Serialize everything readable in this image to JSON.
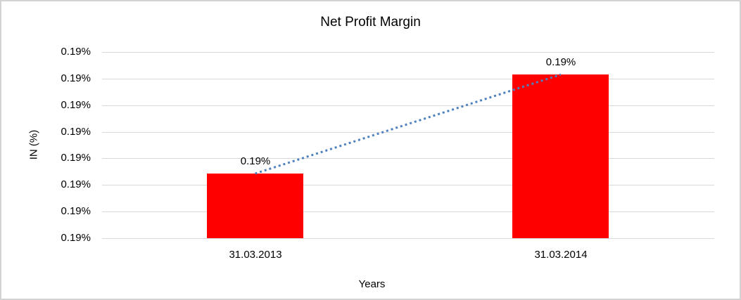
{
  "chart_data": {
    "type": "bar",
    "title": "Net Profit Margin",
    "xlabel": "Years",
    "ylabel": "IN (%)",
    "categories": [
      "31.03.2013",
      "31.03.2014"
    ],
    "series": [
      {
        "name": "Net Profit Margin",
        "values": [
          0.19,
          0.19
        ],
        "data_labels": [
          "0.19%",
          "0.19%"
        ]
      }
    ],
    "y_tick_labels": [
      "0.19%",
      "0.19%",
      "0.19%",
      "0.19%",
      "0.19%",
      "0.19%",
      "0.19%",
      "0.19%"
    ],
    "grid": "horizontal",
    "legend": "none",
    "trendline": {
      "style": "dotted",
      "connects": "bar-tops"
    },
    "colors": {
      "bar": "#FF0000",
      "trendline": "#4F81BD",
      "gridline": "#D9D9D9",
      "text": "#000000",
      "background": "#FFFFFF",
      "frame_border": "#D3D3D3"
    },
    "layout": {
      "bar_height_fractions": [
        0.347,
        0.879
      ],
      "bar_center_fractions": [
        0.25,
        0.7494
      ],
      "bar_width_fraction": 0.1575,
      "y_tick_count": 8
    }
  }
}
